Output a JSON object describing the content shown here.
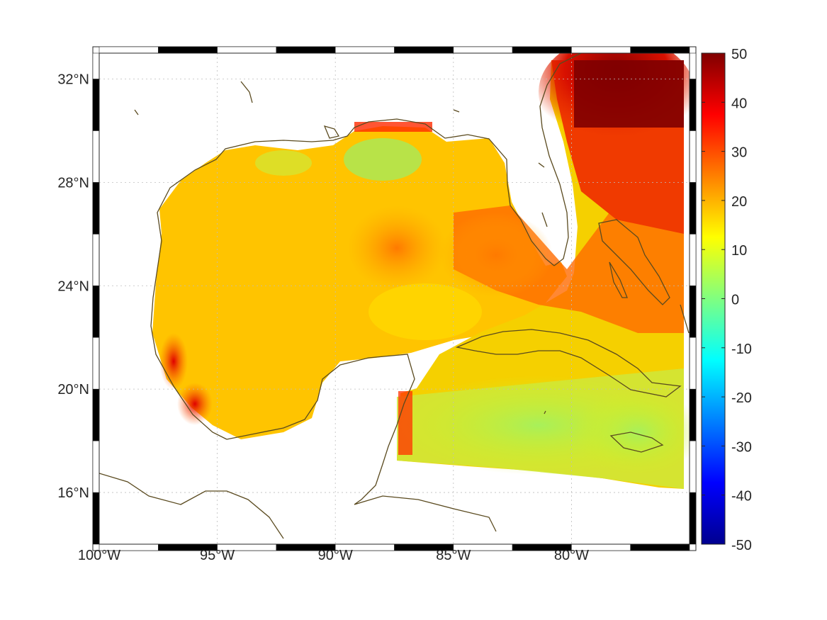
{
  "map": {
    "lon_range": [
      -100,
      -75
    ],
    "lat_range": [
      14,
      33
    ],
    "grid": true,
    "coastline_color": "#5a4a1f",
    "lon_ticks": [
      {
        "value": -100,
        "label": "100°W"
      },
      {
        "value": -95,
        "label": "95°W"
      },
      {
        "value": -90,
        "label": "90°W"
      },
      {
        "value": -85,
        "label": "85°W"
      },
      {
        "value": -80,
        "label": "80°W"
      }
    ],
    "lat_ticks": [
      {
        "value": 32,
        "label": "32°N"
      },
      {
        "value": 28,
        "label": "28°N"
      },
      {
        "value": 24,
        "label": "24°N"
      },
      {
        "value": 20,
        "label": "20°N"
      },
      {
        "value": 16,
        "label": "16°N"
      }
    ]
  },
  "colorbar": {
    "min": -50,
    "max": 50,
    "colormap": "jet",
    "tick_labels": [
      "50",
      "40",
      "30",
      "20",
      "10",
      "0",
      "-10",
      "-20",
      "-30",
      "-40",
      "-50"
    ]
  }
}
